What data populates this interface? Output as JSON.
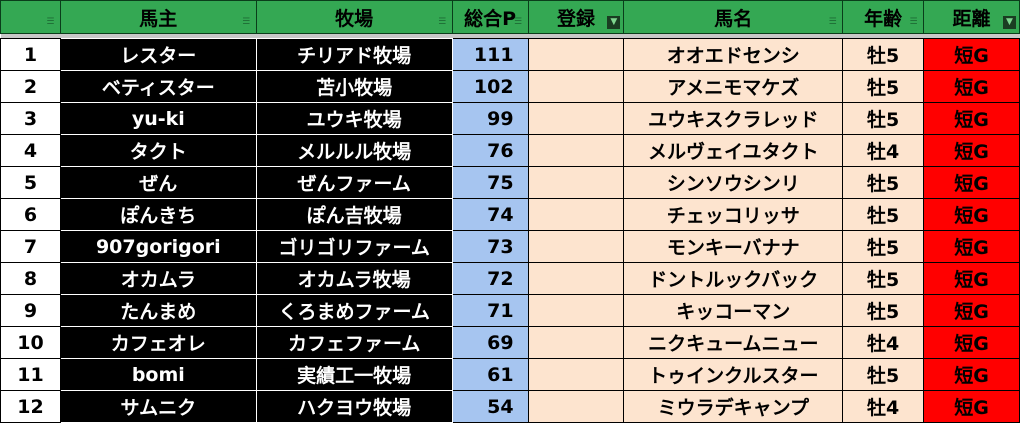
{
  "headers": [
    "",
    "馬主",
    "牧場",
    "総合P",
    "登録",
    "馬名",
    "年齢",
    "距離"
  ],
  "filter_active": [
    false,
    false,
    false,
    false,
    true,
    false,
    false,
    true
  ],
  "colors": {
    "header": "#34a853",
    "points": "#a6c5f0",
    "peach": "#fde4cf",
    "distance": "#ff0000"
  },
  "rows": [
    [
      "1",
      "レスター",
      "チリアド牧場",
      "111",
      "",
      "オオエドセンシ",
      "牡5",
      "短G"
    ],
    [
      "2",
      "ベティスター",
      "苫小牧場",
      "102",
      "",
      "アメニモマケズ",
      "牡5",
      "短G"
    ],
    [
      "3",
      "yu-ki",
      "ユウキ牧場",
      "99",
      "",
      "ユウキスクラレッド",
      "牡5",
      "短G"
    ],
    [
      "4",
      "タクト",
      "メルルル牧場",
      "76",
      "",
      "メルヴェイユタクト",
      "牡4",
      "短G"
    ],
    [
      "5",
      "ぜん",
      "ぜんファーム",
      "75",
      "",
      "シンソウシンリ",
      "牡5",
      "短G"
    ],
    [
      "6",
      "ぽんきち",
      "ぽん吉牧場",
      "74",
      "",
      "チェッコリッサ",
      "牡5",
      "短G"
    ],
    [
      "7",
      "907gorigori",
      "ゴリゴリファーム",
      "73",
      "",
      "モンキーバナナ",
      "牡5",
      "短G"
    ],
    [
      "8",
      "オカムラ",
      "オカムラ牧場",
      "72",
      "",
      "ドントルックバック",
      "牡5",
      "短G"
    ],
    [
      "9",
      "たんまめ",
      "くろまめファーム",
      "71",
      "",
      "キッコーマン",
      "牡5",
      "短G"
    ],
    [
      "10",
      "カフェオレ",
      "カフェファーム",
      "69",
      "",
      "ニクキュームニュー",
      "牡4",
      "短G"
    ],
    [
      "11",
      "bomi",
      "実績工一牧場",
      "61",
      "",
      "トゥインクルスター",
      "牡5",
      "短G"
    ],
    [
      "12",
      "サムニク",
      "ハクヨウ牧場",
      "54",
      "",
      "ミウラデキャンプ",
      "牡4",
      "短G"
    ]
  ]
}
